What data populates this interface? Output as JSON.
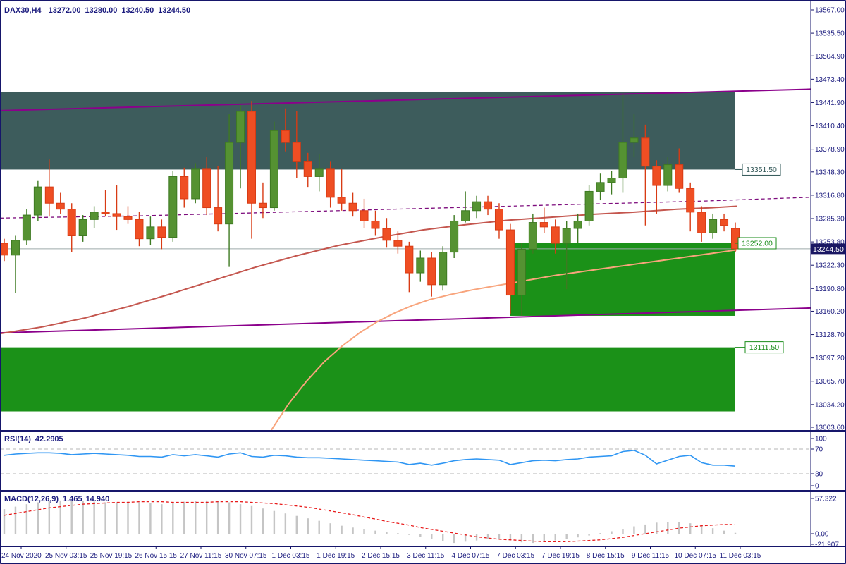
{
  "header": {
    "symbol_tf": "DAX30,H4",
    "open": "13272.00",
    "high": "13280.00",
    "low": "13240.50",
    "close": "13244.50"
  },
  "indicators": {
    "rsi": {
      "name": "RSI(14)",
      "value": "42.2905"
    },
    "macd": {
      "name": "MACD(12,26,9)",
      "value_main": "1.465",
      "value_signal": "14.940"
    }
  },
  "colors": {
    "axis_text": "#1b1b7e",
    "bull_body": "#559232",
    "bull_edge": "#3e7a22",
    "bear_body": "#ef4e23",
    "bear_edge": "#d83b14",
    "supply_zone": "#3d5c5c",
    "demand_zone": "#1b9118",
    "trendline": "#8b008b",
    "ma_dashed": "#7d0c7d",
    "ma_brown": "#c4564e",
    "ma_salmon": "#f8a47c",
    "bid_line": "#9daaaa",
    "badge_bg": "#1a1763",
    "badge_text": "#ffffff",
    "level_teal": "#2e5454",
    "level_green": "#1a8c1a",
    "rsi_line": "#2f96f3",
    "rsi_grid": "#b5b5b5",
    "macd_bar": "#c5c5c5",
    "macd_signal": "#e81b1b"
  },
  "price_axis": {
    "labels": [
      {
        "text": "13567.00",
        "price": 13567.0
      },
      {
        "text": "13535.50",
        "price": 13535.5
      },
      {
        "text": "13504.90",
        "price": 13504.9
      },
      {
        "text": "13473.40",
        "price": 13473.4
      },
      {
        "text": "13441.90",
        "price": 13441.9
      },
      {
        "text": "13410.40",
        "price": 13410.4
      },
      {
        "text": "13378.90",
        "price": 13378.9
      },
      {
        "text": "13348.30",
        "price": 13348.3
      },
      {
        "text": "13316.80",
        "price": 13316.8
      },
      {
        "text": "13285.30",
        "price": 13285.3
      },
      {
        "text": "13253.80",
        "price": 13253.8
      },
      {
        "text": "13222.30",
        "price": 13222.3
      },
      {
        "text": "13190.80",
        "price": 13190.8
      },
      {
        "text": "13160.20",
        "price": 13160.2
      },
      {
        "text": "13128.70",
        "price": 13128.7
      },
      {
        "text": "13097.20",
        "price": 13097.2
      },
      {
        "text": "13065.70",
        "price": 13065.7
      },
      {
        "text": "13034.20",
        "price": 13034.2
      },
      {
        "text": "13003.60",
        "price": 13003.6
      }
    ],
    "current_badge": {
      "text": "13244.50",
      "price": 13244.5
    }
  },
  "time_axis": {
    "labels": [
      "24 Nov 2020",
      "25 Nov 03:15",
      "25 Nov 19:15",
      "26 Nov 15:15",
      "27 Nov 11:15",
      "30 Nov 07:15",
      "1 Dec 03:15",
      "1 Dec 19:15",
      "2 Dec 15:15",
      "3 Dec 11:15",
      "4 Dec 07:15",
      "7 Dec 03:15",
      "7 Dec 19:15",
      "8 Dec 15:15",
      "9 Dec 11:15",
      "10 Dec 07:15",
      "11 Dec 03:15"
    ]
  },
  "chart_data": [
    {
      "type": "candlestick",
      "title": "DAX30,H4",
      "ylim": [
        13003.6,
        13567.0
      ],
      "grid": false,
      "last_bar_ohlc": {
        "open": 13272.0,
        "high": 13280.0,
        "low": 13240.5,
        "close": 13244.5
      },
      "candles": [
        [
          13252,
          13258,
          13228,
          13236
        ],
        [
          13236,
          13262,
          13185,
          13256
        ],
        [
          13256,
          13298,
          13250,
          13290
        ],
        [
          13290,
          13336,
          13282,
          13328
        ],
        [
          13328,
          13365,
          13288,
          13306
        ],
        [
          13306,
          13320,
          13292,
          13298
        ],
        [
          13298,
          13306,
          13240,
          13262
        ],
        [
          13262,
          13290,
          13254,
          13284
        ],
        [
          13284,
          13302,
          13272,
          13294
        ],
        [
          13294,
          13324,
          13288,
          13292
        ],
        [
          13292,
          13330,
          13270,
          13288
        ],
        [
          13288,
          13302,
          13278,
          13284
        ],
        [
          13284,
          13294,
          13248,
          13258
        ],
        [
          13258,
          13288,
          13250,
          13274
        ],
        [
          13274,
          13284,
          13244,
          13260
        ],
        [
          13260,
          13350,
          13254,
          13342
        ],
        [
          13342,
          13354,
          13300,
          13312
        ],
        [
          13312,
          13360,
          13306,
          13352
        ],
        [
          13352,
          13368,
          13290,
          13300
        ],
        [
          13300,
          13356,
          13268,
          13278
        ],
        [
          13278,
          13426,
          13220,
          13388
        ],
        [
          13388,
          13438,
          13326,
          13430
        ],
        [
          13430,
          13444,
          13258,
          13306
        ],
        [
          13306,
          13334,
          13286,
          13300
        ],
        [
          13300,
          13416,
          13296,
          13404
        ],
        [
          13404,
          13434,
          13376,
          13388
        ],
        [
          13388,
          13430,
          13340,
          13362
        ],
        [
          13362,
          13374,
          13328,
          13342
        ],
        [
          13342,
          13372,
          13322,
          13352
        ],
        [
          13352,
          13362,
          13300,
          13314
        ],
        [
          13314,
          13352,
          13296,
          13306
        ],
        [
          13306,
          13320,
          13288,
          13296
        ],
        [
          13296,
          13312,
          13272,
          13282
        ],
        [
          13282,
          13296,
          13262,
          13272
        ],
        [
          13272,
          13286,
          13246,
          13256
        ],
        [
          13256,
          13268,
          13238,
          13248
        ],
        [
          13248,
          13254,
          13186,
          13212
        ],
        [
          13212,
          13242,
          13200,
          13232
        ],
        [
          13232,
          13240,
          13180,
          13196
        ],
        [
          13196,
          13248,
          13188,
          13240
        ],
        [
          13240,
          13290,
          13232,
          13282
        ],
        [
          13282,
          13322,
          13280,
          13296
        ],
        [
          13296,
          13316,
          13286,
          13308
        ],
        [
          13308,
          13316,
          13290,
          13298
        ],
        [
          13298,
          13306,
          13258,
          13270
        ],
        [
          13270,
          13278,
          13156,
          13182
        ],
        [
          13182,
          13252,
          13154,
          13244
        ],
        [
          13244,
          13292,
          13238,
          13280
        ],
        [
          13280,
          13300,
          13266,
          13274
        ],
        [
          13274,
          13284,
          13238,
          13252
        ],
        [
          13252,
          13282,
          13190,
          13272
        ],
        [
          13272,
          13292,
          13252,
          13282
        ],
        [
          13282,
          13330,
          13276,
          13322
        ],
        [
          13322,
          13346,
          13310,
          13334
        ],
        [
          13334,
          13350,
          13318,
          13340
        ],
        [
          13340,
          13454,
          13320,
          13388
        ],
        [
          13388,
          13426,
          13368,
          13394
        ],
        [
          13394,
          13412,
          13276,
          13356
        ],
        [
          13356,
          13364,
          13292,
          13330
        ],
        [
          13330,
          13368,
          13322,
          13358
        ],
        [
          13358,
          13380,
          13320,
          13326
        ],
        [
          13326,
          13334,
          13268,
          13294
        ],
        [
          13294,
          13302,
          13254,
          13266
        ],
        [
          13266,
          13292,
          13258,
          13284
        ],
        [
          13284,
          13292,
          13268,
          13276
        ],
        [
          13272,
          13280,
          13240.5,
          13244.5
        ]
      ],
      "zones": [
        {
          "name": "supply-zone",
          "x1": 0,
          "x2": 1043,
          "price_top": 13456.5,
          "price_bottom": 13351.5,
          "color_key": "supply_zone"
        },
        {
          "name": "demand-zone-upper",
          "x1": 723,
          "x2": 1043,
          "price_top": 13252.0,
          "price_bottom": 13154.0,
          "color_key": "demand_zone"
        },
        {
          "name": "demand-zone-lower",
          "x1": 0,
          "x2": 1043,
          "price_top": 13111.5,
          "price_bottom": 13025.0,
          "color_key": "demand_zone"
        }
      ],
      "trendlines": [
        {
          "name": "upper-trendline",
          "x1": 0,
          "p1": 13431,
          "x2": 1150,
          "p2": 13460
        },
        {
          "name": "lower-trendline",
          "x1": 0,
          "p1": 13131,
          "x2": 1150,
          "p2": 13164.5
        }
      ],
      "levels": [
        {
          "label": "13351.50",
          "price": 13351.5,
          "box_x": 1053,
          "color_key": "level_teal"
        },
        {
          "label": "13252.00",
          "price": 13252.0,
          "box_x": 1047,
          "color_key": "level_green"
        },
        {
          "label": "13111.50",
          "price": 13111.5,
          "box_x": 1057,
          "color_key": "level_green"
        }
      ],
      "bid_price": 13244.5,
      "moving_averages": [
        {
          "name": "ma-dashed-purple",
          "style": "dashed",
          "color_key": "ma_dashed",
          "points": [
            [
              0,
              13286
            ],
            [
              200,
              13289
            ],
            [
              400,
              13294
            ],
            [
              600,
              13299
            ],
            [
              800,
              13304
            ],
            [
              1000,
              13309
            ],
            [
              1150,
              13314
            ]
          ]
        },
        {
          "name": "ma-brown",
          "style": "solid",
          "color_key": "ma_brown",
          "points": [
            [
              0,
              13130
            ],
            [
              60,
              13139
            ],
            [
              120,
              13151
            ],
            [
              180,
              13166
            ],
            [
              240,
              13183
            ],
            [
              300,
              13201
            ],
            [
              360,
              13219
            ],
            [
              420,
              13235
            ],
            [
              480,
              13249
            ],
            [
              540,
              13260
            ],
            [
              600,
              13270
            ],
            [
              660,
              13277
            ],
            [
              720,
              13283
            ],
            [
              780,
              13287
            ],
            [
              840,
              13291
            ],
            [
              900,
              13294
            ],
            [
              960,
              13298
            ],
            [
              1010,
              13300
            ],
            [
              1045,
              13302
            ]
          ]
        },
        {
          "name": "ma-salmon",
          "style": "solid",
          "color_key": "ma_salmon",
          "points": [
            [
              385,
              13000
            ],
            [
              410,
              13036
            ],
            [
              435,
              13066
            ],
            [
              460,
              13092
            ],
            [
              485,
              13113
            ],
            [
              510,
              13131
            ],
            [
              535,
              13146
            ],
            [
              560,
              13158
            ],
            [
              585,
              13168
            ],
            [
              610,
              13176
            ],
            [
              640,
              13183
            ],
            [
              670,
              13189
            ],
            [
              700,
              13194
            ],
            [
              730,
              13199
            ],
            [
              760,
              13204
            ],
            [
              790,
              13209
            ],
            [
              820,
              13213
            ],
            [
              850,
              13217
            ],
            [
              880,
              13221
            ],
            [
              910,
              13225
            ],
            [
              940,
              13229
            ],
            [
              970,
              13233
            ],
            [
              1000,
              13237
            ],
            [
              1045,
              13243
            ]
          ]
        }
      ]
    },
    {
      "type": "line",
      "title": "RSI(14)",
      "current_value": 42.2905,
      "range": [
        0,
        100
      ],
      "grid_levels": [
        70,
        30
      ],
      "axis_labels": [
        {
          "text": "100",
          "v": 100
        },
        {
          "text": "70",
          "v": 70
        },
        {
          "text": "30",
          "v": 30
        },
        {
          "text": "0",
          "v": 0
        }
      ],
      "values": [
        60,
        62,
        63,
        64,
        64,
        63,
        61,
        62,
        63,
        62,
        61,
        60,
        58,
        58,
        57,
        61,
        59,
        61,
        59,
        57,
        62,
        64,
        58,
        57,
        60,
        59,
        57,
        56,
        56,
        55,
        54,
        53,
        52,
        51,
        50,
        49,
        45,
        47,
        44,
        47,
        51,
        53,
        54,
        53,
        52,
        45,
        48,
        51,
        52,
        51,
        53,
        54,
        57,
        58,
        59,
        66,
        68,
        60,
        46,
        52,
        58,
        60,
        48,
        44,
        44,
        42.29
      ]
    },
    {
      "type": "macd",
      "title": "MACD(12,26,9)",
      "current_main": 1.465,
      "current_signal": 14.94,
      "axis_labels": [
        {
          "text": "57.322",
          "v": 57.322
        },
        {
          "text": "0.00",
          "v": 0
        },
        {
          "text": "-21.907",
          "v": -21.907
        }
      ],
      "histogram": [
        40,
        44,
        48,
        51,
        53,
        54,
        54,
        53,
        52,
        51,
        51,
        52,
        51,
        50,
        48,
        50,
        52,
        53,
        54,
        53,
        51,
        48,
        45,
        41,
        37,
        33,
        29,
        25,
        21,
        17,
        13,
        10,
        7,
        5,
        3,
        1,
        -2,
        -5,
        -8,
        -12,
        -15,
        -13,
        -11,
        -9,
        -8,
        -11,
        -14,
        -15,
        -13,
        -11,
        -9,
        -6,
        -3,
        1,
        4,
        8,
        12,
        15,
        18,
        19,
        19,
        17,
        13,
        9,
        5,
        1.465
      ],
      "signal": [
        30,
        33,
        36,
        39,
        42,
        44,
        46,
        48,
        49,
        50,
        51,
        51,
        52,
        52,
        52,
        51,
        51,
        51,
        51,
        52,
        52,
        52,
        51,
        50,
        49,
        47,
        45,
        43,
        40,
        37,
        34,
        31,
        27,
        24,
        20,
        17,
        14,
        10,
        7,
        4,
        1,
        -2,
        -5,
        -7,
        -9,
        -10,
        -11,
        -12,
        -13,
        -13,
        -13,
        -12,
        -11,
        -10,
        -8,
        -6,
        -3,
        0,
        3,
        6,
        9,
        11,
        13,
        14,
        15,
        14.94
      ]
    }
  ]
}
